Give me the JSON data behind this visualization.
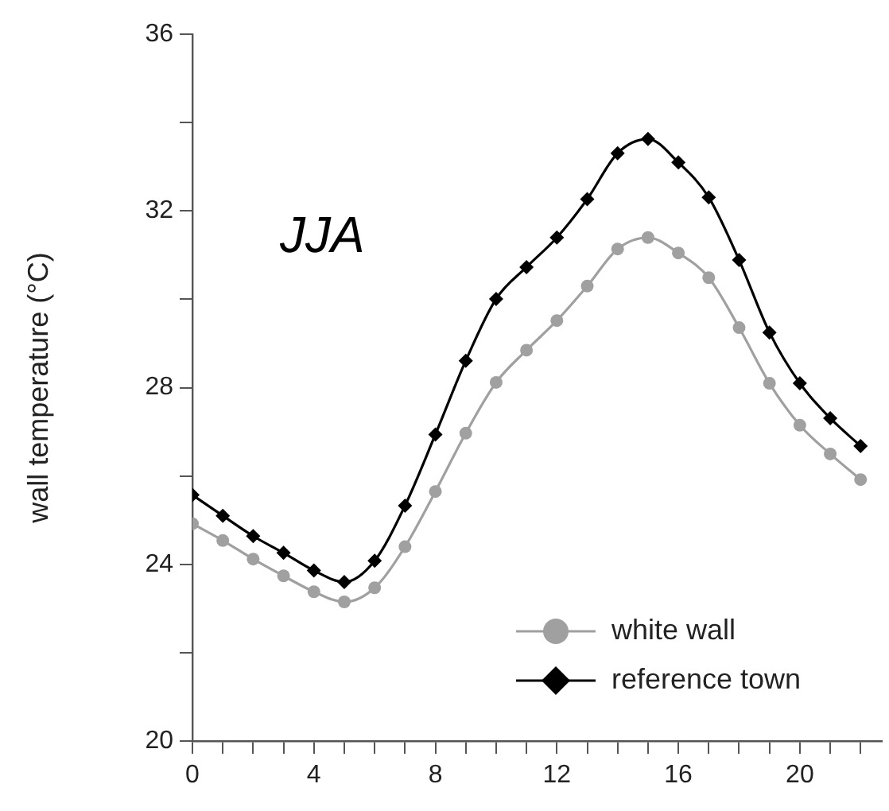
{
  "chart_data": {
    "type": "line",
    "ylabel": "wall temperature (°C)",
    "annotations": [
      "JJA"
    ],
    "x": [
      0,
      1,
      2,
      3,
      4,
      5,
      6,
      7,
      8,
      9,
      10,
      11,
      12,
      13,
      14,
      15,
      16,
      17,
      18,
      19,
      20,
      21,
      22
    ],
    "xlim": [
      0,
      22.7
    ],
    "xticks": [
      0,
      {
        "value": 1,
        "label": null
      },
      {
        "value": 2,
        "label": null
      },
      {
        "value": 3,
        "label": null
      },
      4,
      {
        "value": 5,
        "label": null
      },
      {
        "value": 6,
        "label": null
      },
      {
        "value": 7,
        "label": null
      },
      8,
      {
        "value": 9,
        "label": null
      },
      {
        "value": 10,
        "label": null
      },
      {
        "value": 11,
        "label": null
      },
      12,
      {
        "value": 13,
        "label": null
      },
      {
        "value": 14,
        "label": null
      },
      {
        "value": 15,
        "label": null
      },
      16,
      {
        "value": 17,
        "label": null
      },
      {
        "value": 18,
        "label": null
      },
      {
        "value": 19,
        "label": null
      },
      20,
      {
        "value": 21,
        "label": null
      },
      {
        "value": 22,
        "label": null
      }
    ],
    "ylim": [
      20,
      36
    ],
    "yticks": [
      20,
      {
        "value": 22,
        "label": null
      },
      24,
      {
        "value": 26,
        "label": null
      },
      28,
      {
        "value": 30,
        "label": null
      },
      32,
      {
        "value": 34,
        "label": null
      },
      36
    ],
    "grid": false,
    "legend": "bottom right",
    "line_style": "solid",
    "series": [
      {
        "name": "white wall",
        "color": "#a0a0a0",
        "marker": "circle",
        "values": [
          24.92,
          24.54,
          24.12,
          23.74,
          23.38,
          23.15,
          23.47,
          24.4,
          25.65,
          26.97,
          28.12,
          28.85,
          29.52,
          30.3,
          31.14,
          31.4,
          31.05,
          30.49,
          29.36,
          28.1,
          27.15,
          26.5,
          25.92
        ]
      },
      {
        "name": "reference town",
        "color": "#000000",
        "marker": "diamond",
        "values": [
          25.57,
          25.1,
          24.64,
          24.26,
          23.86,
          23.6,
          24.08,
          25.33,
          26.94,
          28.61,
          30.01,
          30.73,
          31.4,
          32.27,
          33.31,
          33.63,
          33.1,
          32.31,
          30.89,
          29.25,
          28.1,
          27.31,
          26.68
        ]
      }
    ]
  }
}
